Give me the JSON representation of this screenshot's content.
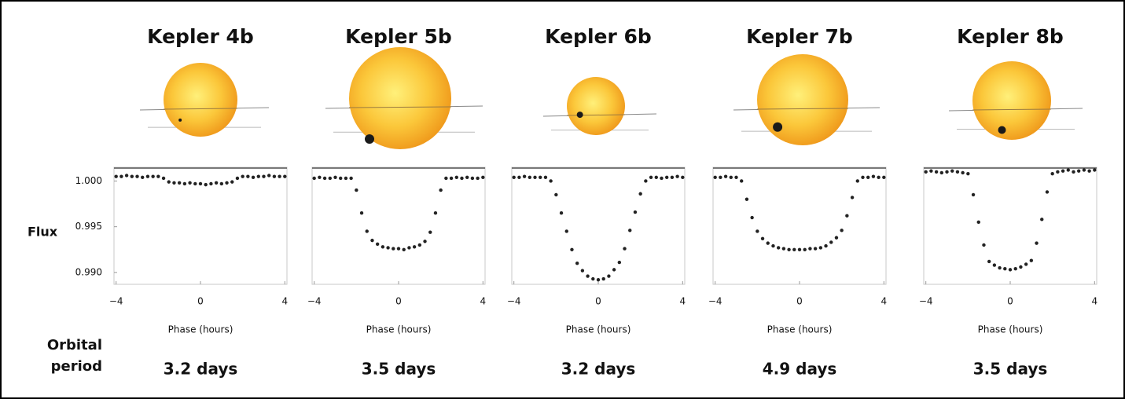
{
  "row_label": "Orbital period",
  "chart_data": [
    {
      "type": "scatter",
      "title": "Kepler 4b",
      "period": "3.2 days",
      "xlabel": "Phase (hours)",
      "ylabel": "Flux",
      "color": "#222222",
      "xlim": [
        -4.1,
        4.1
      ],
      "ylim": [
        0.9887,
        1.0015
      ],
      "xticks": [
        {
          "value": -4,
          "label": "−4"
        },
        0,
        4
      ],
      "yticks": [
        {
          "value": 1,
          "label": "1.000"
        },
        0.995,
        {
          "value": 0.99,
          "label": "0.990"
        }
      ],
      "x": [
        -4,
        -3.75,
        -3.5,
        -3.25,
        -3,
        -2.75,
        -2.5,
        -2.25,
        -2,
        -1.75,
        -1.5,
        -1.25,
        -1,
        -0.75,
        -0.5,
        -0.25,
        0,
        0.25,
        0.5,
        0.75,
        1,
        1.25,
        1.5,
        1.75,
        2,
        2.25,
        2.5,
        2.75,
        3,
        3.25,
        3.5,
        3.75,
        4
      ],
      "values": [
        1.0005,
        1.0005,
        1.0006,
        1.0005,
        1.0005,
        1.0004,
        1.0005,
        1.0005,
        1.0005,
        1.0003,
        0.9999,
        0.9998,
        0.9998,
        0.9997,
        0.9998,
        0.9997,
        0.9997,
        0.9996,
        0.9997,
        0.9998,
        0.9997,
        0.9998,
        0.9999,
        1.0003,
        1.0005,
        1.0005,
        1.0004,
        1.0005,
        1.0005,
        1.0006,
        1.0005,
        1.0005,
        1.0005
      ]
    },
    {
      "type": "scatter",
      "title": "Kepler 5b",
      "period": "3.5 days",
      "xlabel": "Phase (hours)",
      "color": "#222222",
      "xlim": [
        -4.1,
        4.1
      ],
      "ylim": [
        0.9887,
        1.0015
      ],
      "xticks": [
        {
          "value": -4,
          "label": "−4"
        },
        0,
        4
      ],
      "x": [
        -4,
        -3.75,
        -3.5,
        -3.25,
        -3,
        -2.75,
        -2.5,
        -2.25,
        -2,
        -1.75,
        -1.5,
        -1.25,
        -1,
        -0.75,
        -0.5,
        -0.25,
        0,
        0.25,
        0.5,
        0.75,
        1,
        1.25,
        1.5,
        1.75,
        2,
        2.25,
        2.5,
        2.75,
        3,
        3.25,
        3.5,
        3.75,
        4
      ],
      "values": [
        1.0003,
        1.0004,
        1.0003,
        1.0003,
        1.0004,
        1.0003,
        1.0003,
        1.0003,
        0.999,
        0.9965,
        0.9945,
        0.9935,
        0.9931,
        0.9928,
        0.9927,
        0.9926,
        0.9926,
        0.9925,
        0.9927,
        0.9928,
        0.993,
        0.9934,
        0.9944,
        0.9965,
        0.999,
        1.0003,
        1.0003,
        1.0004,
        1.0003,
        1.0004,
        1.0003,
        1.0003,
        1.0004
      ]
    },
    {
      "type": "scatter",
      "title": "Kepler 6b",
      "period": "3.2 days",
      "xlabel": "Phase (hours)",
      "color": "#222222",
      "xlim": [
        -4.1,
        4.1
      ],
      "ylim": [
        0.9887,
        1.0015
      ],
      "xticks": [
        {
          "value": -4,
          "label": "−4"
        },
        0,
        4
      ],
      "x": [
        -4,
        -3.75,
        -3.5,
        -3.25,
        -3,
        -2.75,
        -2.5,
        -2.25,
        -2,
        -1.75,
        -1.5,
        -1.25,
        -1,
        -0.75,
        -0.5,
        -0.25,
        0,
        0.25,
        0.5,
        0.75,
        1,
        1.25,
        1.5,
        1.75,
        2,
        2.25,
        2.5,
        2.75,
        3,
        3.25,
        3.5,
        3.75,
        4
      ],
      "values": [
        1.0004,
        1.0004,
        1.0005,
        1.0004,
        1.0004,
        1.0004,
        1.0004,
        1,
        0.9985,
        0.9965,
        0.9945,
        0.9925,
        0.991,
        0.9902,
        0.9896,
        0.9893,
        0.9892,
        0.9893,
        0.9896,
        0.9903,
        0.9911,
        0.9926,
        0.9946,
        0.9966,
        0.9986,
        1,
        1.0004,
        1.0004,
        1.0003,
        1.0004,
        1.0004,
        1.0005,
        1.0004
      ]
    },
    {
      "type": "scatter",
      "title": "Kepler 7b",
      "period": "4.9 days",
      "xlabel": "Phase (hours)",
      "color": "#222222",
      "xlim": [
        -4.1,
        4.1
      ],
      "ylim": [
        0.9887,
        1.0015
      ],
      "xticks": [
        {
          "value": -4,
          "label": "−4"
        },
        0,
        4
      ],
      "x": [
        -4,
        -3.75,
        -3.5,
        -3.25,
        -3,
        -2.75,
        -2.5,
        -2.25,
        -2,
        -1.75,
        -1.5,
        -1.25,
        -1,
        -0.75,
        -0.5,
        -0.25,
        0,
        0.25,
        0.5,
        0.75,
        1,
        1.25,
        1.5,
        1.75,
        2,
        2.25,
        2.5,
        2.75,
        3,
        3.25,
        3.5,
        3.75,
        4
      ],
      "values": [
        1.0004,
        1.0004,
        1.0005,
        1.0004,
        1.0004,
        1,
        0.998,
        0.996,
        0.9945,
        0.9937,
        0.9932,
        0.9929,
        0.9927,
        0.9926,
        0.9925,
        0.9925,
        0.9925,
        0.9925,
        0.9926,
        0.9926,
        0.9927,
        0.9929,
        0.9933,
        0.9938,
        0.9946,
        0.9962,
        0.9982,
        1,
        1.0004,
        1.0004,
        1.0005,
        1.0004,
        1.0004
      ]
    },
    {
      "type": "scatter",
      "title": "Kepler 8b",
      "period": "3.5 days",
      "xlabel": "Phase (hours)",
      "color": "#222222",
      "xlim": [
        -4.1,
        4.1
      ],
      "ylim": [
        0.9887,
        1.0015
      ],
      "xticks": [
        {
          "value": -4,
          "label": "−4"
        },
        0,
        4
      ],
      "x": [
        -4,
        -3.75,
        -3.5,
        -3.25,
        -3,
        -2.75,
        -2.5,
        -2.25,
        -2,
        -1.75,
        -1.5,
        -1.25,
        -1,
        -0.75,
        -0.5,
        -0.25,
        0,
        0.25,
        0.5,
        0.75,
        1,
        1.25,
        1.5,
        1.75,
        2,
        2.25,
        2.5,
        2.75,
        3,
        3.25,
        3.5,
        3.75,
        4
      ],
      "values": [
        1.001,
        1.0011,
        1.001,
        1.0009,
        1.001,
        1.0011,
        1.001,
        1.0009,
        1.0008,
        0.9985,
        0.9955,
        0.993,
        0.9912,
        0.9908,
        0.9905,
        0.9904,
        0.9903,
        0.9904,
        0.9906,
        0.9909,
        0.9913,
        0.9932,
        0.9958,
        0.9988,
        1.0008,
        1.001,
        1.0011,
        1.0012,
        1.001,
        1.0011,
        1.0012,
        1.0011,
        1.0012
      ]
    }
  ]
}
